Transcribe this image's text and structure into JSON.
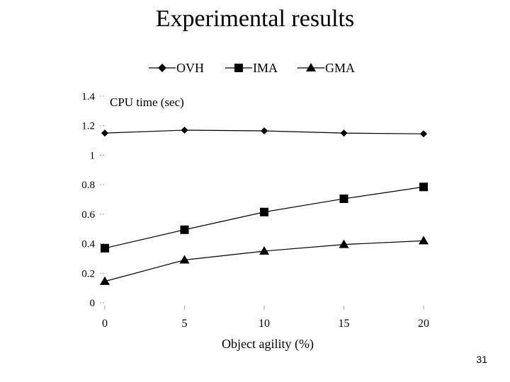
{
  "slide": {
    "title": "Experimental results",
    "page_number": "31"
  },
  "chart_data": {
    "type": "line",
    "title": "",
    "ylabel": "CPU time (sec)",
    "xlabel": "Object agility (%)",
    "x": [
      0,
      5,
      10,
      15,
      20
    ],
    "x_tick_labels": [
      "0",
      "5",
      "10",
      "15",
      "20"
    ],
    "ylim": [
      0,
      1.4
    ],
    "y_ticks": [
      0,
      0.2,
      0.4,
      0.6,
      0.8,
      1.0,
      1.2,
      1.4
    ],
    "y_tick_labels": [
      "0",
      "0.2",
      "0.4",
      "0.6",
      "0.8",
      "1",
      "1.2",
      "1.4"
    ],
    "grid": false,
    "legend_position": "top-center",
    "series": [
      {
        "name": "OVH",
        "marker": "diamond",
        "values": [
          1.15,
          1.17,
          1.165,
          1.15,
          1.145
        ]
      },
      {
        "name": "IMA",
        "marker": "square",
        "values": [
          0.37,
          0.495,
          0.615,
          0.705,
          0.785
        ]
      },
      {
        "name": "GMA",
        "marker": "triangle",
        "values": [
          0.145,
          0.29,
          0.35,
          0.395,
          0.42
        ]
      }
    ]
  }
}
